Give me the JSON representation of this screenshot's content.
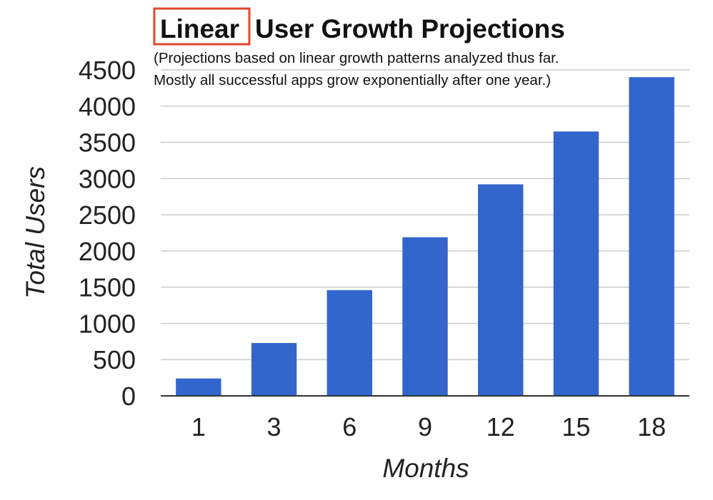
{
  "chart_data": {
    "type": "bar",
    "title_highlight": "Linear",
    "title_rest": "User Growth Projections",
    "subtitle_lines": [
      "(Projections based on linear growth patterns analyzed thus far.",
      "Mostly all successful apps grow exponentially after one year.)"
    ],
    "xlabel": "Months",
    "ylabel": "Total Users",
    "categories": [
      "1",
      "3",
      "6",
      "9",
      "12",
      "15",
      "18"
    ],
    "values": [
      240,
      730,
      1460,
      2190,
      2920,
      3650,
      4400
    ],
    "ylim": [
      0,
      4500
    ],
    "yticks": [
      "0",
      "500",
      "1000",
      "1500",
      "2000",
      "2500",
      "3000",
      "3500",
      "4000",
      "4500"
    ],
    "grid": true,
    "legend": "none",
    "colors": {
      "bar": "#3366cc",
      "highlight_box": "#e2472d",
      "grid": "#cccccc",
      "axis": "#333333",
      "text": "#222222"
    }
  }
}
